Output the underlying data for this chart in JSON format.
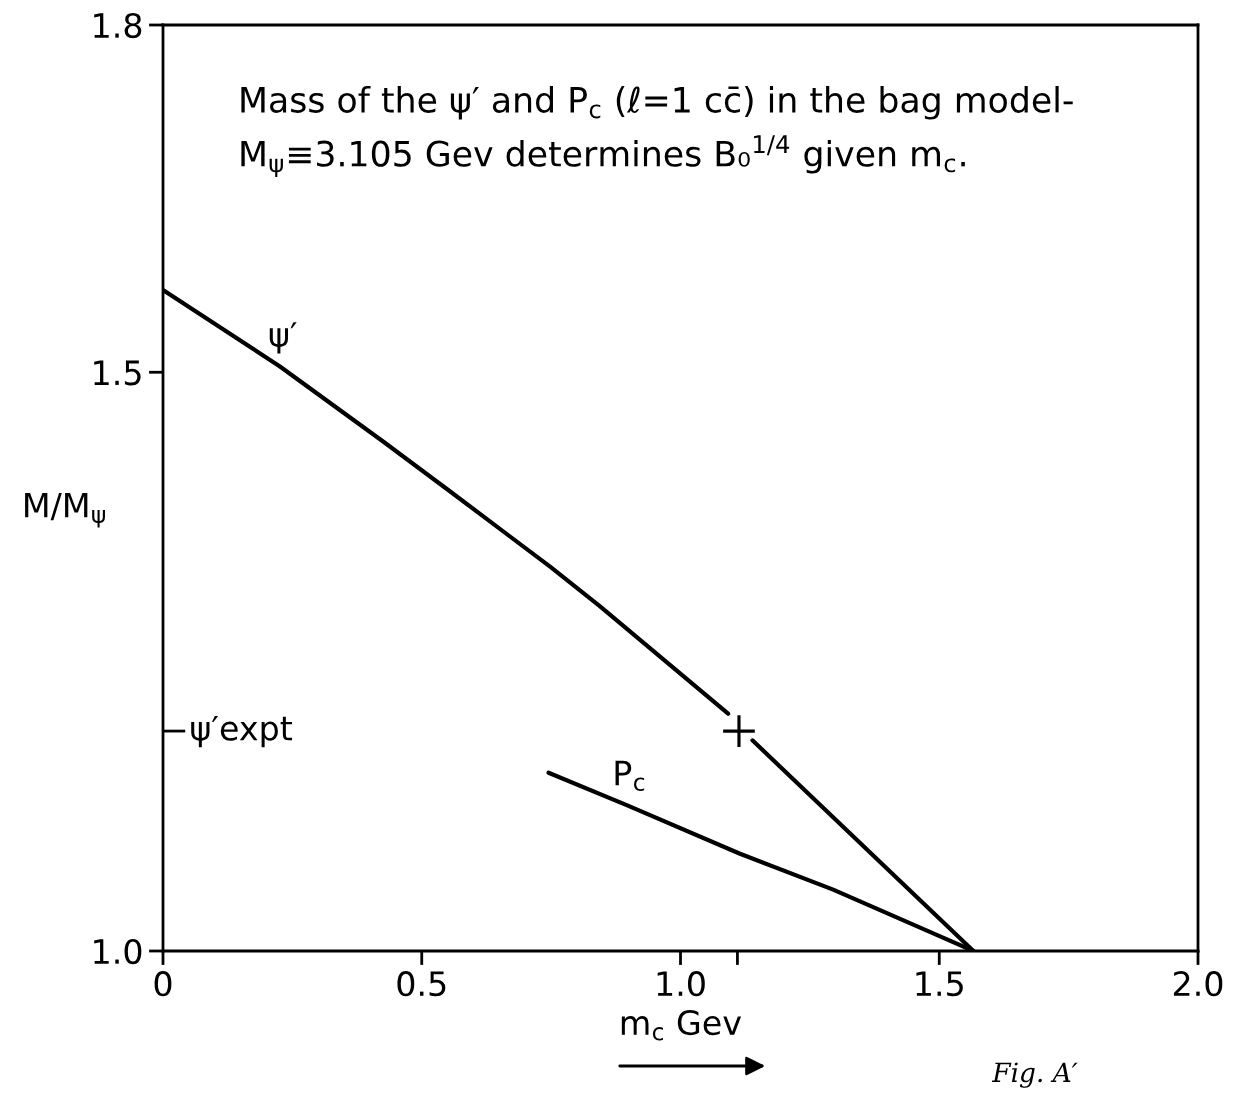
{
  "chart_data": {
    "type": "line",
    "annotations": [
      "Mass of the ψ′ and P$_{c}$ (ℓ=1 cc̄) in the bag model-\nM$_{ψ}$≡3.105 Gev determines B₀$^{1/4}$ given m$_{c}$.",
      "Fig. A′"
    ],
    "xlabel": "m$_{c}$ Gev",
    "ylabel": "M/M$_{ψ}$",
    "xlim": [
      0,
      2.0
    ],
    "xticks": [
      0,
      0.5,
      {
        "value": 1.0,
        "label": "1.0"
      },
      {
        "value": 1.11,
        "label": null
      },
      1.5,
      {
        "value": 2.0,
        "label": "2.0"
      }
    ],
    "ylim": [
      1.0,
      1.8
    ],
    "yticks": [
      {
        "value": 1.0,
        "label": "1.0"
      },
      1.5,
      1.8
    ],
    "ref_lines": [
      {
        "axis": "y",
        "value": 1.19,
        "label": "ψ′expt",
        "color": "#000000"
      }
    ],
    "line_style": "solid",
    "marker": "none",
    "series": [
      {
        "name": "ψ′",
        "color": "#000000",
        "x": [
          0,
          0.226,
          0.426,
          0.555,
          0.748,
          0.844,
          1.092,
          1.113,
          1.139,
          1.566
        ],
        "values": [
          1.571,
          1.505,
          1.44,
          1.397,
          1.332,
          1.298,
          1.205,
          null,
          1.182,
          1.0
        ]
      },
      {
        "name": "P$_{c}$",
        "color": "#000000",
        "x": [
          0.745,
          0.896,
          1.115,
          1.295,
          1.495,
          1.566
        ],
        "values": [
          1.154,
          1.126,
          1.084,
          1.053,
          1.014,
          1.0
        ]
      },
      {
        "type": "scatter",
        "marker": "cross",
        "color": "#000000",
        "x": [
          1.113
        ],
        "values": [
          1.19
        ]
      }
    ]
  }
}
